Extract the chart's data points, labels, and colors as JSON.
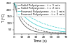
{
  "title": "",
  "xlabel": "Time (s)",
  "ylabel": "T (°C)",
  "xlim": [
    0,
    70
  ],
  "ylim": [
    20,
    255
  ],
  "yticks": [
    50,
    100,
    150,
    200,
    250
  ],
  "xticks": [
    0,
    10,
    20,
    30,
    40,
    50,
    60,
    70
  ],
  "legend_entries": [
    {
      "label": "Solid Polystyrene - t = 1 min",
      "color": "#555555",
      "linestyle": "-"
    },
    {
      "label": "Solid Polystyrene - t = 2 min",
      "color": "#555555",
      "linestyle": "--"
    },
    {
      "label": "Foamed Polystyrene - t = 1 min",
      "color": "#44cccc",
      "linestyle": "-"
    },
    {
      "label": "Foamed Polystyrene - t = 2 min",
      "color": "#44cccc",
      "linestyle": "--"
    }
  ],
  "curve_colors": [
    "#555555",
    "#555555",
    "#44cccc",
    "#44cccc"
  ],
  "curve_styles": [
    "-",
    "--",
    "-",
    "--"
  ],
  "curve_k": [
    0.095,
    0.065,
    0.042,
    0.028
  ],
  "curve_baseline": [
    22,
    22,
    22,
    22
  ],
  "curve_amplitude": [
    228,
    228,
    228,
    228
  ],
  "background_color": "#ffffff",
  "legend_fontsize": 2.8,
  "axis_fontsize": 3.5,
  "tick_fontsize": 3.0,
  "linewidth": 0.55
}
